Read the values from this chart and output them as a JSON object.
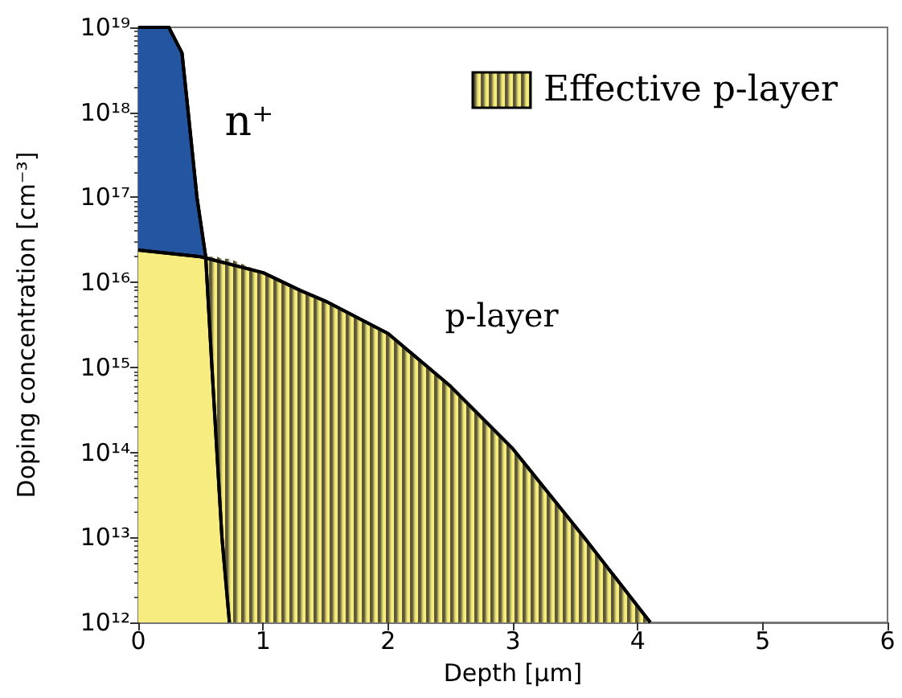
{
  "chart_data": {
    "type": "area",
    "xlabel": "Depth [μm]",
    "ylabel": "Doping concentration [cm⁻³]",
    "log": "y",
    "grid": false,
    "legend": "top right",
    "xlim": [
      0,
      6
    ],
    "xticks": [
      0,
      1,
      2,
      3,
      4,
      5,
      6
    ],
    "ylim": [
      1000000000000.0,
      1e+19
    ],
    "yticks": [
      {
        "value": 1000000000000.0,
        "label": "10¹²"
      },
      {
        "value": 10000000000000.0,
        "label": "10¹³"
      },
      {
        "value": 100000000000000.0,
        "label": "10¹⁴"
      },
      {
        "value": 1000000000000000.0,
        "label": "10¹⁵"
      },
      {
        "value": 1e+16,
        "label": "10¹⁶"
      },
      {
        "value": 1e+17,
        "label": "10¹⁷"
      },
      {
        "value": 1e+18,
        "label": "10¹⁸"
      },
      {
        "value": 1e+19,
        "label": "10¹⁹"
      }
    ],
    "annotations": [
      "n⁺",
      "p-layer"
    ],
    "series": [
      {
        "color": "#2455a0",
        "x": [
          0,
          0.245,
          0.35,
          0.4,
          0.47,
          0.54,
          0.59,
          0.63,
          0.67,
          0.73
        ],
        "values": [
          1e+19,
          1e+19,
          5e+18,
          1e+18,
          1e+17,
          2e+16,
          1000000000000000.0,
          100000000000000.0,
          10000000000000.0,
          1000000000000.0
        ]
      },
      {
        "color": "#f7ec80",
        "x": [
          0,
          0.5,
          1,
          1.3,
          1.5,
          2,
          2.5,
          3,
          3.57,
          4.1
        ],
        "values": [
          2.4e+16,
          2e+16,
          1.3e+16,
          8000000000000000.0,
          6000000000000000.0,
          2500000000000000.0,
          600000000000000.0,
          110000000000000.0,
          10000000000000.0,
          1000000000000.0
        ]
      },
      {
        "name": "Effective p-layer",
        "color": "#5c5835",
        "x": [
          0.54,
          0.59,
          0.63,
          0.67,
          0.73,
          1,
          1.3,
          1.5,
          2,
          2.5,
          3,
          3.57,
          4.1
        ],
        "values": [
          2e+16,
          2e+16,
          2e+16,
          1.9e+16,
          1.9e+16,
          1.3e+16,
          8000000000000000.0,
          6000000000000000.0,
          2500000000000000.0,
          600000000000000.0,
          110000000000000.0,
          10000000000000.0,
          1000000000000.0
        ]
      }
    ]
  }
}
